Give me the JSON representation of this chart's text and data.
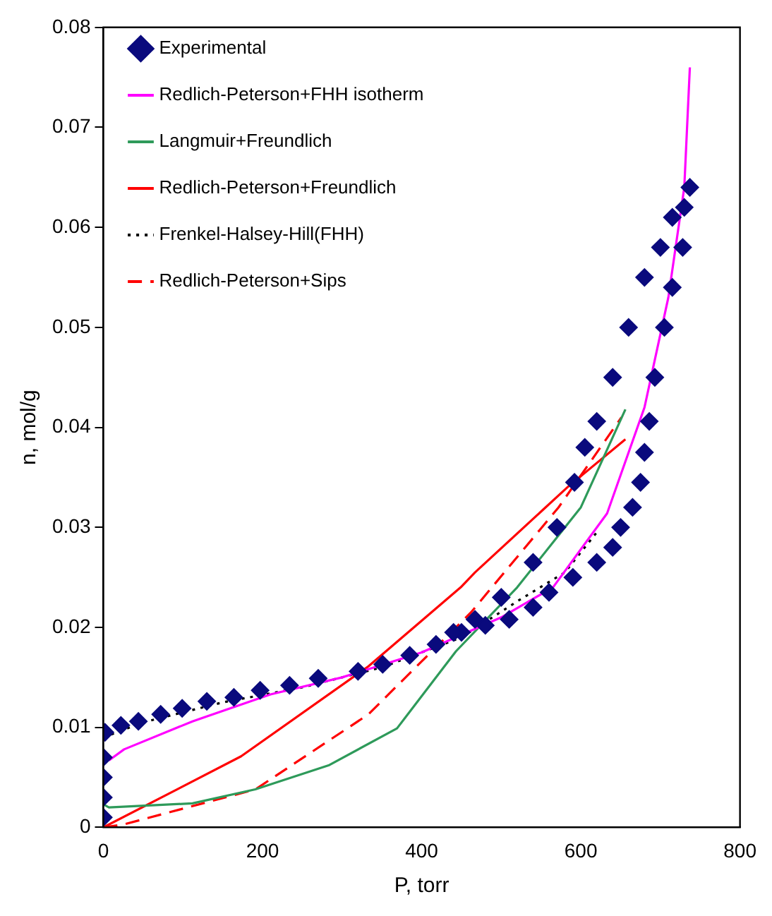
{
  "chart_data": {
    "type": "line",
    "xlabel": "P, torr",
    "ylabel": "n, mol/g",
    "xlim": [
      0,
      800
    ],
    "xticks": [
      0,
      200,
      400,
      600,
      800
    ],
    "ylim": [
      0,
      0.08
    ],
    "yticks": [
      0,
      0.01,
      0.02,
      0.03,
      0.04,
      0.05,
      0.06,
      0.07,
      0.08
    ],
    "grid": false,
    "legend": "top left",
    "series": [
      {
        "name": "Experimental",
        "type": "scatter",
        "marker": "diamond",
        "color": "#0a0a7d",
        "x": [
          0,
          0,
          0,
          0,
          2,
          22,
          44,
          72,
          99,
          130,
          164,
          197,
          234,
          270,
          320,
          351,
          385,
          418,
          450,
          480,
          510,
          540,
          560,
          590,
          620,
          640,
          650,
          665,
          675,
          680,
          686,
          693,
          705,
          715,
          728,
          737,
          730,
          715,
          700,
          680,
          660,
          640,
          620,
          605,
          592,
          570,
          540,
          500,
          467,
          440
        ],
        "values": [
          0.001,
          0.003,
          0.005,
          0.007,
          0.0095,
          0.0102,
          0.0106,
          0.0113,
          0.0119,
          0.0126,
          0.013,
          0.0137,
          0.0142,
          0.0149,
          0.0156,
          0.0163,
          0.0172,
          0.0183,
          0.0195,
          0.0202,
          0.0208,
          0.022,
          0.0235,
          0.025,
          0.0265,
          0.028,
          0.03,
          0.032,
          0.0345,
          0.0375,
          0.0406,
          0.045,
          0.05,
          0.054,
          0.058,
          0.064,
          0.062,
          0.061,
          0.058,
          0.055,
          0.05,
          0.045,
          0.0406,
          0.038,
          0.0345,
          0.03,
          0.0265,
          0.023,
          0.0208,
          0.0195
        ]
      },
      {
        "name": "Redlich-Peterson+FHH isotherm",
        "type": "line",
        "marker": "none",
        "line_style": "solid",
        "color": "#ff00ff",
        "x": [
          7,
          26,
          112,
          210,
          300,
          400,
          500,
          565,
          633,
          680,
          710,
          730,
          737
        ],
        "values": [
          0.0067,
          0.0078,
          0.0106,
          0.0133,
          0.015,
          0.0175,
          0.021,
          0.024,
          0.0314,
          0.042,
          0.053,
          0.064,
          0.076
        ]
      },
      {
        "name": "Langmuir+Freundlich",
        "type": "line",
        "marker": "none",
        "line_style": "solid",
        "color": "#2e9a5a",
        "x": [
          0,
          7,
          112,
          191,
          283,
          369,
          443,
          520,
          600,
          656
        ],
        "values": [
          0.0023,
          0.002,
          0.0024,
          0.0038,
          0.0062,
          0.0099,
          0.0176,
          0.024,
          0.032,
          0.0418
        ]
      },
      {
        "name": "Redlich-Peterson+Freundlich",
        "type": "line",
        "marker": "none",
        "line_style": "solid",
        "color": "#ff0000",
        "x": [
          0,
          173,
          333,
          449,
          467,
          583,
          656
        ],
        "values": [
          0,
          0.0071,
          0.0161,
          0.024,
          0.0255,
          0.034,
          0.0388
        ]
      },
      {
        "name": "Frenkel-Halsey-Hill(FHH)",
        "type": "line",
        "marker": "none",
        "line_style": "dotted",
        "color": "#000000",
        "x": [
          0,
          50,
          150,
          250,
          350,
          450,
          522,
          580,
          620
        ],
        "values": [
          0.009,
          0.0105,
          0.0125,
          0.014,
          0.016,
          0.019,
          0.0227,
          0.0255,
          0.0295
        ]
      },
      {
        "name": "Redlich-Peterson+Sips",
        "type": "line",
        "marker": "none",
        "line_style": "dashed",
        "color": "#ff0000",
        "x": [
          0,
          26,
          191,
          333,
          462,
          572,
          651
        ],
        "values": [
          0,
          0.0003,
          0.0038,
          0.0113,
          0.0215,
          0.032,
          0.041
        ]
      }
    ]
  }
}
